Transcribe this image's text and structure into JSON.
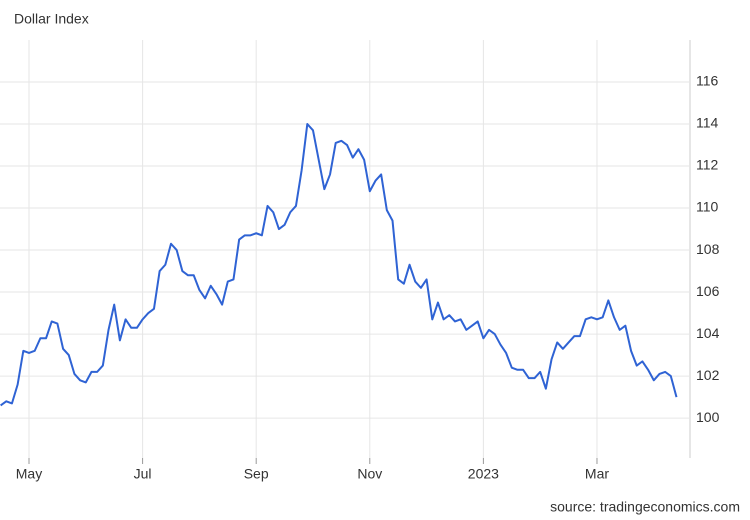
{
  "chart_data": {
    "type": "line",
    "title": "Dollar Index",
    "source": "source: tradingeconomics.com",
    "categories": [
      null,
      null,
      null,
      null,
      null,
      "May",
      null,
      null,
      null,
      null,
      null,
      null,
      null,
      null,
      null,
      null,
      null,
      null,
      null,
      null,
      null,
      null,
      null,
      null,
      null,
      "Jul",
      null,
      null,
      null,
      null,
      null,
      null,
      null,
      null,
      null,
      null,
      null,
      null,
      null,
      null,
      null,
      null,
      null,
      null,
      null,
      "Sep",
      null,
      null,
      null,
      null,
      null,
      null,
      null,
      null,
      null,
      null,
      null,
      null,
      null,
      null,
      null,
      null,
      null,
      null,
      null,
      "Nov",
      null,
      null,
      null,
      null,
      null,
      null,
      null,
      null,
      null,
      null,
      null,
      null,
      null,
      null,
      null,
      null,
      null,
      null,
      null,
      "2023",
      null,
      null,
      null,
      null,
      null,
      null,
      null,
      null,
      null,
      null,
      null,
      null,
      null,
      null,
      null,
      null,
      null,
      null,
      null,
      "Mar",
      null,
      null,
      null,
      null,
      null,
      null,
      null,
      null,
      null,
      null,
      null,
      null,
      null,
      null
    ],
    "series": [
      {
        "name": "Dollar Index",
        "color": "#2f63d4",
        "values": [
          100.6,
          100.8,
          100.7,
          101.6,
          103.2,
          103.1,
          103.2,
          103.8,
          103.8,
          104.6,
          104.5,
          103.3,
          103.0,
          102.1,
          101.8,
          101.7,
          102.2,
          102.2,
          102.5,
          104.2,
          105.4,
          103.7,
          104.7,
          104.3,
          104.3,
          104.7,
          105.0,
          105.2,
          107.0,
          107.3,
          108.3,
          108.0,
          107.0,
          106.8,
          106.8,
          106.1,
          105.7,
          106.3,
          105.9,
          105.4,
          106.5,
          106.6,
          108.5,
          108.7,
          108.7,
          108.8,
          108.7,
          110.1,
          109.8,
          109.0,
          109.2,
          109.8,
          110.1,
          111.8,
          114.0,
          113.7,
          112.3,
          110.9,
          111.6,
          113.1,
          113.2,
          113.0,
          112.4,
          112.8,
          112.3,
          110.8,
          111.3,
          111.6,
          109.9,
          109.4,
          106.6,
          106.4,
          107.3,
          106.5,
          106.2,
          106.6,
          104.7,
          105.5,
          104.7,
          104.9,
          104.6,
          104.7,
          104.2,
          104.4,
          104.6,
          103.8,
          104.2,
          104.0,
          103.5,
          103.1,
          102.4,
          102.3,
          102.3,
          101.9,
          101.9,
          102.2,
          101.4,
          102.8,
          103.6,
          103.3,
          103.6,
          103.9,
          103.9,
          104.7,
          104.8,
          104.7,
          104.8,
          105.6,
          104.8,
          104.2,
          104.4,
          103.2,
          102.5,
          102.7,
          102.3,
          101.8,
          102.1,
          102.2,
          102.0,
          101.0
        ]
      }
    ],
    "ylim": [
      98.1,
      118
    ],
    "yticks": [
      100,
      102,
      104,
      106,
      108,
      110,
      112,
      114,
      116
    ],
    "grid": true
  }
}
